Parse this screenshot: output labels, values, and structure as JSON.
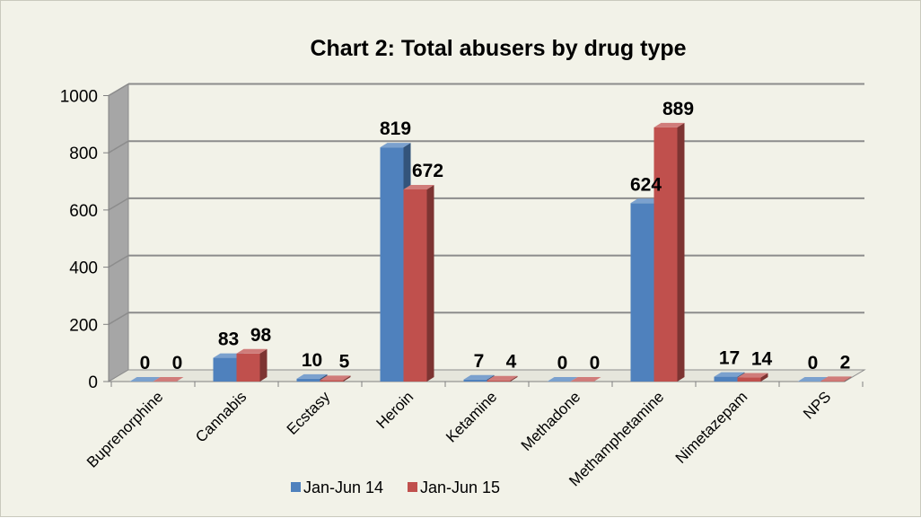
{
  "chart_data": {
    "type": "bar",
    "title": "Chart 2: Total abusers by drug type",
    "xlabel": "",
    "ylabel": "",
    "categories": [
      "Buprenorphine",
      "Cannabis",
      "Ecstasy",
      "Heroin",
      "Ketamine",
      "Methadone",
      "Methamphetamine",
      "Nimetazepam",
      "NPS"
    ],
    "series": [
      {
        "name": "Jan-Jun 14",
        "values": [
          0,
          83,
          10,
          819,
          7,
          0,
          624,
          17,
          0
        ],
        "color": "#4f81bd"
      },
      {
        "name": "Jan-Jun 15",
        "values": [
          0,
          98,
          5,
          672,
          4,
          0,
          889,
          14,
          2
        ],
        "color": "#c0504d"
      }
    ],
    "ylim": [
      0,
      1000
    ],
    "yticks": [
      0,
      200,
      400,
      600,
      800,
      1000
    ],
    "grid": true,
    "legend": "bottom",
    "style": "3d-clustered-column",
    "background": "#f2f2e8"
  }
}
